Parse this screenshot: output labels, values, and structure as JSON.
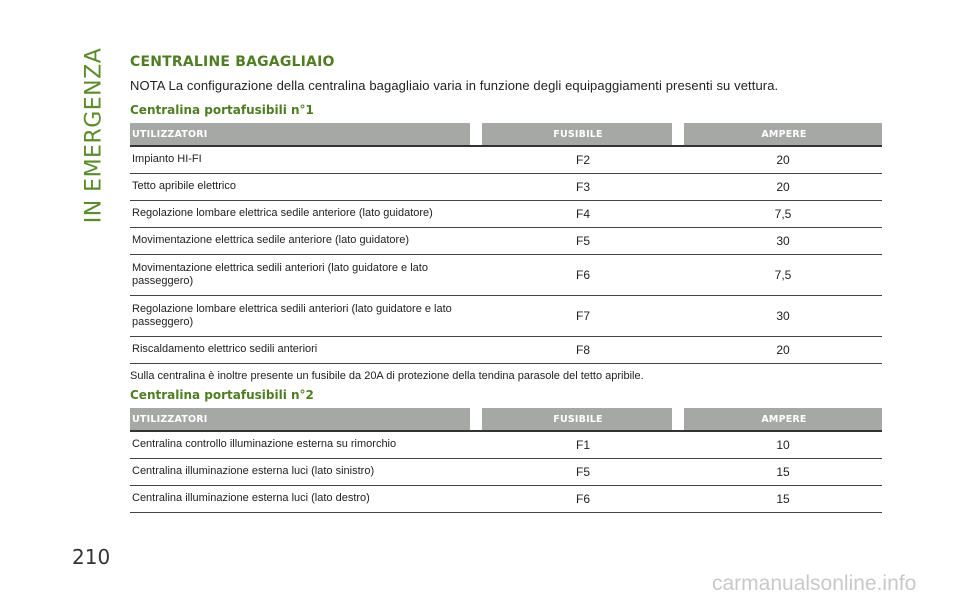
{
  "side_tab": "IN EMERGENZA",
  "page_number": "210",
  "section_title": "CENTRALINE BAGAGLIAIO",
  "note": "NOTA La configurazione della centralina bagagliaio varia in funzione degli equipaggiamenti presenti su vettura.",
  "table1": {
    "title": "Centralina portafusibili n°1",
    "headers": [
      "UTILIZZATORI",
      "FUSIBILE",
      "AMPERE"
    ],
    "rows": [
      [
        "Impianto HI-FI",
        "F2",
        "20"
      ],
      [
        "Tetto apribile elettrico",
        "F3",
        "20"
      ],
      [
        "Regolazione lombare elettrica sedile anteriore (lato guidatore)",
        "F4",
        "7,5"
      ],
      [
        "Movimentazione elettrica sedile anteriore (lato guidatore)",
        "F5",
        "30"
      ],
      [
        "Movimentazione elettrica sedili anteriori (lato guidatore e lato passeggero)",
        "F6",
        "7,5"
      ],
      [
        "Regolazione lombare elettrica sedili anteriori (lato guidatore e lato passeggero)",
        "F7",
        "30"
      ],
      [
        "Riscaldamento elettrico sedili anteriori",
        "F8",
        "20"
      ]
    ]
  },
  "mid_note": "Sulla centralina è inoltre presente un fusibile da 20A di protezione della tendina parasole del tetto apribile.",
  "table2": {
    "title": "Centralina portafusibili n°2",
    "headers": [
      "UTILIZZATORI",
      "FUSIBILE",
      "AMPERE"
    ],
    "rows": [
      [
        "Centralina controllo illuminazione esterna su rimorchio",
        "F1",
        "10"
      ],
      [
        "Centralina illuminazione esterna luci (lato sinistro)",
        "F5",
        "15"
      ],
      [
        "Centralina illuminazione esterna luci (lato destro)",
        "F6",
        "15"
      ]
    ]
  },
  "watermark": "carmanualsonline.info"
}
